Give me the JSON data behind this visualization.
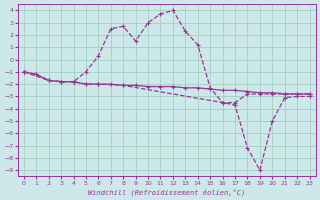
{
  "xlabel": "Windchill (Refroidissement éolien,°C)",
  "background_color": "#cce8e8",
  "grid_color": "#99ccbb",
  "line_color": "#993399",
  "spine_color": "#993399",
  "xlim": [
    -0.5,
    23.5
  ],
  "ylim": [
    -9.5,
    4.5
  ],
  "xticks": [
    0,
    1,
    2,
    3,
    4,
    5,
    6,
    7,
    8,
    9,
    10,
    11,
    12,
    13,
    14,
    15,
    16,
    17,
    18,
    19,
    20,
    21,
    22,
    23
  ],
  "yticks": [
    4,
    3,
    2,
    1,
    0,
    -1,
    -2,
    -3,
    -4,
    -5,
    -6,
    -7,
    -8,
    -9
  ],
  "series": [
    {
      "x": [
        0,
        1,
        2,
        3,
        4,
        5,
        6,
        7,
        8,
        9,
        10,
        11,
        12,
        13,
        14,
        15,
        16,
        17,
        18,
        19,
        20,
        21,
        22,
        23
      ],
      "y": [
        -1,
        -1.2,
        -1.7,
        -1.8,
        -1.8,
        -2.0,
        -2.0,
        -2.0,
        -2.1,
        -2.1,
        -2.2,
        -2.2,
        -2.2,
        -2.3,
        -2.3,
        -2.4,
        -2.5,
        -2.5,
        -2.6,
        -2.7,
        -2.7,
        -2.8,
        -2.8,
        -2.8
      ],
      "linestyle": "-"
    },
    {
      "x": [
        0,
        1,
        2,
        3,
        4,
        5,
        6,
        7,
        8,
        9,
        10,
        11,
        12,
        13,
        14,
        15,
        16,
        17,
        18,
        19,
        20,
        21,
        22,
        23
      ],
      "y": [
        -1,
        -1.2,
        -1.7,
        -1.8,
        -1.8,
        -1.0,
        0.3,
        2.5,
        2.7,
        1.5,
        3.0,
        3.7,
        4.0,
        2.3,
        1.2,
        -2.3,
        -3.5,
        -3.5,
        -2.8,
        -2.8,
        -2.8,
        -2.8,
        -2.8,
        -2.8
      ],
      "linestyle": "--"
    },
    {
      "x": [
        0,
        2,
        3,
        4,
        5,
        6,
        8,
        16,
        17,
        18,
        19,
        20,
        21,
        22,
        23
      ],
      "y": [
        -1,
        -1.7,
        -1.8,
        -1.8,
        -2.0,
        -2.0,
        -2.1,
        -3.5,
        -3.7,
        -7.2,
        -9.0,
        -5.0,
        -3.1,
        -3.0,
        -3.0
      ],
      "linestyle": "--"
    }
  ]
}
